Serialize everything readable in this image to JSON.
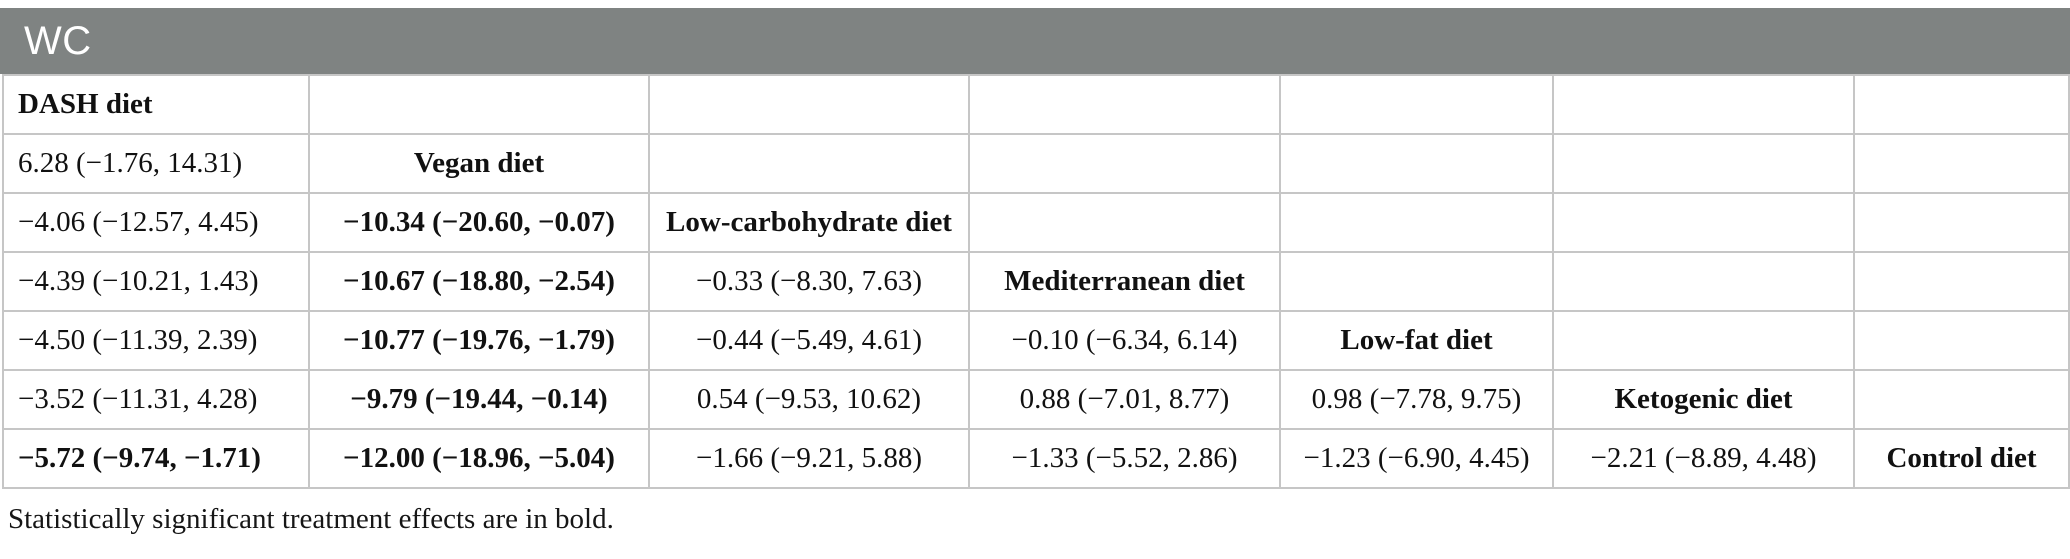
{
  "header": {
    "title": "WC"
  },
  "colors": {
    "title_bar_bg": "#7f8382",
    "title_fg": "#ffffff",
    "grid_border": "#c6c6c6",
    "text": "#111111"
  },
  "table": {
    "value_format": "mean difference (95% CI)",
    "rows": [
      [
        {
          "kind": "diet-name",
          "text": "DASH diet",
          "bold": true
        },
        {
          "kind": "empty",
          "text": "",
          "bold": false
        },
        {
          "kind": "empty",
          "text": "",
          "bold": false
        },
        {
          "kind": "empty",
          "text": "",
          "bold": false
        },
        {
          "kind": "empty",
          "text": "",
          "bold": false
        },
        {
          "kind": "empty",
          "text": "",
          "bold": false
        },
        {
          "kind": "empty",
          "text": "",
          "bold": false
        }
      ],
      [
        {
          "kind": "estimate",
          "text": "6.28 (−1.76, 14.31)",
          "bold": false
        },
        {
          "kind": "diet-name",
          "text": "Vegan diet",
          "bold": true
        },
        {
          "kind": "empty",
          "text": "",
          "bold": false
        },
        {
          "kind": "empty",
          "text": "",
          "bold": false
        },
        {
          "kind": "empty",
          "text": "",
          "bold": false
        },
        {
          "kind": "empty",
          "text": "",
          "bold": false
        },
        {
          "kind": "empty",
          "text": "",
          "bold": false
        }
      ],
      [
        {
          "kind": "estimate",
          "text": "−4.06 (−12.57, 4.45)",
          "bold": false
        },
        {
          "kind": "estimate",
          "text": "−10.34 (−20.60, −0.07)",
          "bold": true
        },
        {
          "kind": "diet-name",
          "text": "Low-carbohydrate diet",
          "bold": true
        },
        {
          "kind": "empty",
          "text": "",
          "bold": false
        },
        {
          "kind": "empty",
          "text": "",
          "bold": false
        },
        {
          "kind": "empty",
          "text": "",
          "bold": false
        },
        {
          "kind": "empty",
          "text": "",
          "bold": false
        }
      ],
      [
        {
          "kind": "estimate",
          "text": "−4.39 (−10.21, 1.43)",
          "bold": false
        },
        {
          "kind": "estimate",
          "text": "−10.67 (−18.80, −2.54)",
          "bold": true
        },
        {
          "kind": "estimate",
          "text": "−0.33 (−8.30, 7.63)",
          "bold": false
        },
        {
          "kind": "diet-name",
          "text": "Mediterranean diet",
          "bold": true
        },
        {
          "kind": "empty",
          "text": "",
          "bold": false
        },
        {
          "kind": "empty",
          "text": "",
          "bold": false
        },
        {
          "kind": "empty",
          "text": "",
          "bold": false
        }
      ],
      [
        {
          "kind": "estimate",
          "text": "−4.50 (−11.39, 2.39)",
          "bold": false
        },
        {
          "kind": "estimate",
          "text": "−10.77 (−19.76, −1.79)",
          "bold": true
        },
        {
          "kind": "estimate",
          "text": "−0.44 (−5.49, 4.61)",
          "bold": false
        },
        {
          "kind": "estimate",
          "text": "−0.10 (−6.34, 6.14)",
          "bold": false
        },
        {
          "kind": "diet-name",
          "text": "Low-fat diet",
          "bold": true
        },
        {
          "kind": "empty",
          "text": "",
          "bold": false
        },
        {
          "kind": "empty",
          "text": "",
          "bold": false
        }
      ],
      [
        {
          "kind": "estimate",
          "text": "−3.52 (−11.31, 4.28)",
          "bold": false
        },
        {
          "kind": "estimate",
          "text": "−9.79 (−19.44, −0.14)",
          "bold": true
        },
        {
          "kind": "estimate",
          "text": "0.54 (−9.53, 10.62)",
          "bold": false
        },
        {
          "kind": "estimate",
          "text": "0.88 (−7.01, 8.77)",
          "bold": false
        },
        {
          "kind": "estimate",
          "text": "0.98 (−7.78, 9.75)",
          "bold": false
        },
        {
          "kind": "diet-name",
          "text": "Ketogenic diet",
          "bold": true
        },
        {
          "kind": "empty",
          "text": "",
          "bold": false
        }
      ],
      [
        {
          "kind": "estimate",
          "text": "−5.72 (−9.74, −1.71)",
          "bold": true
        },
        {
          "kind": "estimate",
          "text": "−12.00 (−18.96, −5.04)",
          "bold": true
        },
        {
          "kind": "estimate",
          "text": "−1.66 (−9.21, 5.88)",
          "bold": false
        },
        {
          "kind": "estimate",
          "text": "−1.33 (−5.52, 2.86)",
          "bold": false
        },
        {
          "kind": "estimate",
          "text": "−1.23 (−6.90, 4.45)",
          "bold": false
        },
        {
          "kind": "estimate",
          "text": "−2.21 (−8.89, 4.48)",
          "bold": false
        },
        {
          "kind": "diet-name",
          "text": "Control diet",
          "bold": true
        }
      ]
    ]
  },
  "footnote": "Statistically significant treatment effects are in bold."
}
